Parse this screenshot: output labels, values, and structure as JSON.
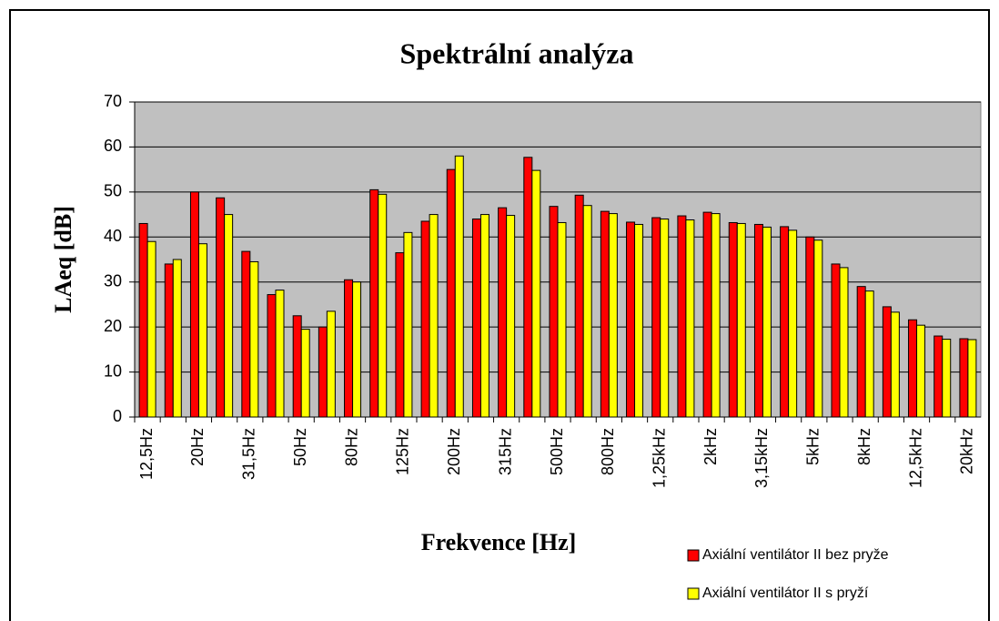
{
  "chart_data": {
    "type": "bar",
    "title": "Spektrální analýza",
    "x_label": "Frekvence [Hz]",
    "y_label": "LAeq [dB]",
    "categories": [
      "12,5Hz",
      null,
      "20Hz",
      null,
      "31,5Hz",
      null,
      "50Hz",
      null,
      "80Hz",
      null,
      "125Hz",
      null,
      "200Hz",
      null,
      "315Hz",
      null,
      "500Hz",
      null,
      "800Hz",
      null,
      "1,25kHz",
      null,
      "2kHz",
      null,
      "3,15kHz",
      null,
      "5kHz",
      null,
      "8kHz",
      null,
      "12,5kHz",
      null,
      "20kHz"
    ],
    "series": [
      {
        "name": "Axiální ventilátor II bez pryže",
        "color": "#ff0000",
        "values": [
          43,
          34,
          50,
          48.7,
          36.8,
          27.2,
          22.5,
          20,
          30.5,
          50.5,
          36.5,
          43.5,
          55,
          44,
          46.5,
          57.7,
          46.8,
          49.3,
          45.7,
          43.3,
          44.3,
          44.7,
          45.5,
          43.2,
          42.8,
          42.3,
          40,
          34,
          29,
          24.5,
          21.6,
          18,
          17.4
        ]
      },
      {
        "name": "Axiální ventilátor II s pryží",
        "color": "#ffff00",
        "values": [
          39,
          35,
          38.5,
          45,
          34.5,
          28.2,
          19.5,
          23.5,
          30,
          49.5,
          41,
          45,
          58,
          45,
          44.8,
          54.8,
          43.2,
          47,
          45.2,
          42.8,
          44,
          43.8,
          45.2,
          43,
          42.2,
          41.5,
          39.3,
          33.2,
          28,
          23.3,
          20.4,
          17.3,
          17.2
        ]
      }
    ],
    "ylim": [
      0,
      70
    ],
    "yticks": [
      0,
      10,
      20,
      30,
      40,
      50,
      60,
      70
    ],
    "grid": true,
    "plot_background": "#c0c0c0",
    "legend": "lower right"
  }
}
